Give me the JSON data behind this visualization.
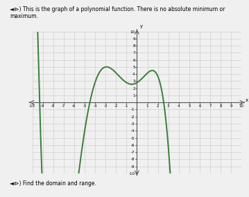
{
  "title_text": "This is the graph of a polynomial function. There is no absolute minimum or maximum.",
  "footer_text": "◄⧐) Find the domain and range.",
  "xmin": -10,
  "xmax": 10,
  "ymin": -10,
  "ymax": 10,
  "grid_color": "#c8c8c8",
  "curve_color": "#3a7d3a",
  "background_color": "#f0f0f0",
  "curve_linewidth": 1.4,
  "axis_color": "#555555",
  "key_x": [
    -9.5,
    -5.0,
    -3.0,
    0.2,
    1.5,
    3.2
  ],
  "key_y": [
    10.5,
    -4.0,
    5.0,
    3.0,
    4.5,
    -10.5
  ]
}
